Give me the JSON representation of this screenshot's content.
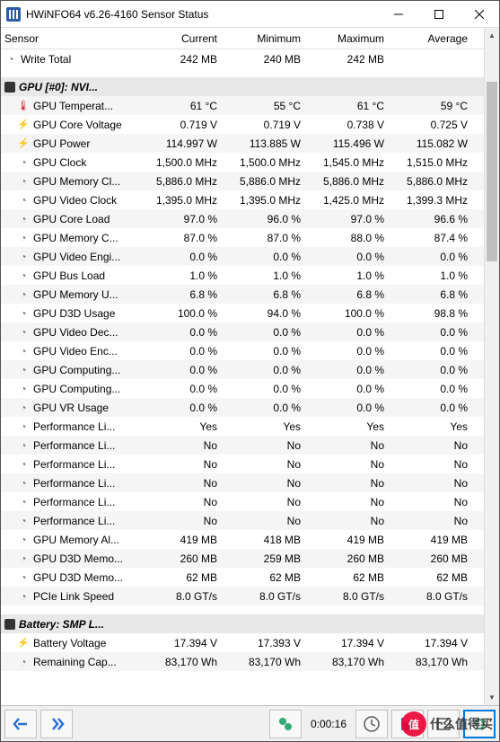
{
  "window": {
    "title": "HWiNFO64 v6.26-4160 Sensor Status"
  },
  "columns": {
    "sensor": "Sensor",
    "current": "Current",
    "minimum": "Minimum",
    "maximum": "Maximum",
    "average": "Average"
  },
  "rows": [
    {
      "icon": "clock",
      "label": "Write Total",
      "cur": "242 MB",
      "min": "240 MB",
      "max": "242 MB",
      "avg": ""
    },
    {
      "blank": true
    },
    {
      "group": true,
      "icon": "chip",
      "label": "GPU [#0]: NVI..."
    },
    {
      "icon": "temp",
      "label": "GPU Temperat...",
      "cur": "61 °C",
      "min": "55 °C",
      "max": "61 °C",
      "avg": "59 °C",
      "indent": true
    },
    {
      "icon": "bolt",
      "label": "GPU Core Voltage",
      "cur": "0.719 V",
      "min": "0.719 V",
      "max": "0.738 V",
      "avg": "0.725 V",
      "indent": true
    },
    {
      "icon": "bolt",
      "label": "GPU Power",
      "cur": "114.997 W",
      "min": "113.885 W",
      "max": "115.496 W",
      "avg": "115.082 W",
      "indent": true
    },
    {
      "icon": "clock",
      "label": "GPU Clock",
      "cur": "1,500.0 MHz",
      "min": "1,500.0 MHz",
      "max": "1,545.0 MHz",
      "avg": "1,515.0 MHz",
      "indent": true
    },
    {
      "icon": "clock",
      "label": "GPU Memory Cl...",
      "cur": "5,886.0 MHz",
      "min": "5,886.0 MHz",
      "max": "5,886.0 MHz",
      "avg": "5,886.0 MHz",
      "indent": true
    },
    {
      "icon": "clock",
      "label": "GPU Video Clock",
      "cur": "1,395.0 MHz",
      "min": "1,395.0 MHz",
      "max": "1,425.0 MHz",
      "avg": "1,399.3 MHz",
      "indent": true
    },
    {
      "icon": "clock",
      "label": "GPU Core Load",
      "cur": "97.0 %",
      "min": "96.0 %",
      "max": "97.0 %",
      "avg": "96.6 %",
      "indent": true
    },
    {
      "icon": "clock",
      "label": "GPU Memory C...",
      "cur": "87.0 %",
      "min": "87.0 %",
      "max": "88.0 %",
      "avg": "87.4 %",
      "indent": true
    },
    {
      "icon": "clock",
      "label": "GPU Video Engi...",
      "cur": "0.0 %",
      "min": "0.0 %",
      "max": "0.0 %",
      "avg": "0.0 %",
      "indent": true
    },
    {
      "icon": "clock",
      "label": "GPU Bus Load",
      "cur": "1.0 %",
      "min": "1.0 %",
      "max": "1.0 %",
      "avg": "1.0 %",
      "indent": true
    },
    {
      "icon": "clock",
      "label": "GPU Memory U...",
      "cur": "6.8 %",
      "min": "6.8 %",
      "max": "6.8 %",
      "avg": "6.8 %",
      "indent": true
    },
    {
      "icon": "clock",
      "label": "GPU D3D Usage",
      "cur": "100.0 %",
      "min": "94.0 %",
      "max": "100.0 %",
      "avg": "98.8 %",
      "indent": true
    },
    {
      "icon": "clock",
      "label": "GPU Video Dec...",
      "cur": "0.0 %",
      "min": "0.0 %",
      "max": "0.0 %",
      "avg": "0.0 %",
      "indent": true
    },
    {
      "icon": "clock",
      "label": "GPU Video Enc...",
      "cur": "0.0 %",
      "min": "0.0 %",
      "max": "0.0 %",
      "avg": "0.0 %",
      "indent": true
    },
    {
      "icon": "clock",
      "label": "GPU Computing...",
      "cur": "0.0 %",
      "min": "0.0 %",
      "max": "0.0 %",
      "avg": "0.0 %",
      "indent": true
    },
    {
      "icon": "clock",
      "label": "GPU Computing...",
      "cur": "0.0 %",
      "min": "0.0 %",
      "max": "0.0 %",
      "avg": "0.0 %",
      "indent": true
    },
    {
      "icon": "clock",
      "label": "GPU VR Usage",
      "cur": "0.0 %",
      "min": "0.0 %",
      "max": "0.0 %",
      "avg": "0.0 %",
      "indent": true
    },
    {
      "icon": "clock",
      "label": "Performance Li...",
      "cur": "Yes",
      "min": "Yes",
      "max": "Yes",
      "avg": "Yes",
      "indent": true
    },
    {
      "icon": "clock",
      "label": "Performance Li...",
      "cur": "No",
      "min": "No",
      "max": "No",
      "avg": "No",
      "indent": true
    },
    {
      "icon": "clock",
      "label": "Performance Li...",
      "cur": "No",
      "min": "No",
      "max": "No",
      "avg": "No",
      "indent": true
    },
    {
      "icon": "clock",
      "label": "Performance Li...",
      "cur": "No",
      "min": "No",
      "max": "No",
      "avg": "No",
      "indent": true
    },
    {
      "icon": "clock",
      "label": "Performance Li...",
      "cur": "No",
      "min": "No",
      "max": "No",
      "avg": "No",
      "indent": true
    },
    {
      "icon": "clock",
      "label": "Performance Li...",
      "cur": "No",
      "min": "No",
      "max": "No",
      "avg": "No",
      "indent": true
    },
    {
      "icon": "clock",
      "label": "GPU Memory Al...",
      "cur": "419 MB",
      "min": "418 MB",
      "max": "419 MB",
      "avg": "419 MB",
      "indent": true
    },
    {
      "icon": "clock",
      "label": "GPU D3D Memo...",
      "cur": "260 MB",
      "min": "259 MB",
      "max": "260 MB",
      "avg": "260 MB",
      "indent": true
    },
    {
      "icon": "clock",
      "label": "GPU D3D Memo...",
      "cur": "62 MB",
      "min": "62 MB",
      "max": "62 MB",
      "avg": "62 MB",
      "indent": true
    },
    {
      "icon": "clock",
      "label": "PCIe Link Speed",
      "cur": "8.0 GT/s",
      "min": "8.0 GT/s",
      "max": "8.0 GT/s",
      "avg": "8.0 GT/s",
      "indent": true
    },
    {
      "blank": true
    },
    {
      "group": true,
      "icon": "batt",
      "label": "Battery: SMP L..."
    },
    {
      "icon": "bolt",
      "label": "Battery Voltage",
      "cur": "17.394 V",
      "min": "17.393 V",
      "max": "17.394 V",
      "avg": "17.394 V",
      "indent": true
    },
    {
      "icon": "clock",
      "label": "Remaining Cap...",
      "cur": "83,170 Wh",
      "min": "83,170 Wh",
      "max": "83,170 Wh",
      "avg": "83,170 Wh",
      "indent": true
    }
  ],
  "status": {
    "elapsed": "0:00:16"
  },
  "watermark": {
    "badge": "值",
    "text": "什么值得买"
  }
}
